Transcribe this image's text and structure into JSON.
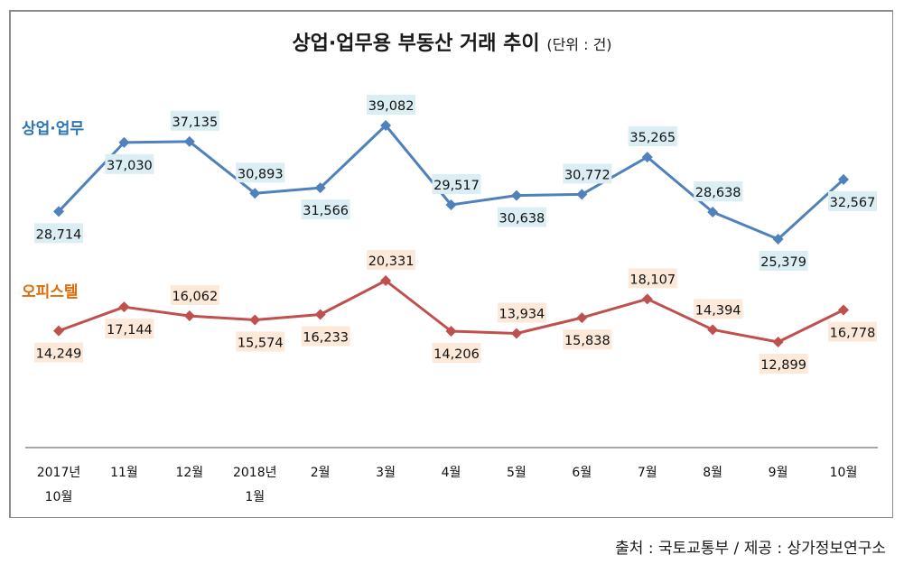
{
  "chart_data": {
    "type": "line",
    "title": "상업·업무용 부동산 거래 추이",
    "unit_label": "(단위 : 건)",
    "xlabel": "",
    "ylabel": "",
    "grid": false,
    "categories": [
      [
        "2017년",
        "10월"
      ],
      [
        "11월"
      ],
      [
        "12월"
      ],
      [
        "2018년",
        "1월"
      ],
      [
        "2월"
      ],
      [
        "3월"
      ],
      [
        "4월"
      ],
      [
        "5월"
      ],
      [
        "6월"
      ],
      [
        "7월"
      ],
      [
        "8월"
      ],
      [
        "9월"
      ],
      [
        "10월"
      ]
    ],
    "series": [
      {
        "name": "상업·업무",
        "color": "#4f81bd",
        "label_bg": "#dbeef4",
        "name_color": "#2e75b6",
        "values": [
          28714,
          37030,
          37135,
          30893,
          31566,
          39082,
          29517,
          30638,
          30772,
          35265,
          28638,
          25379,
          32567
        ],
        "labels": [
          "28,714",
          "37,030",
          "37,135",
          "30,893",
          "31,566",
          "39,082",
          "29,517",
          "30,638",
          "30,772",
          "35,265",
          "28,638",
          "25,379",
          "32,567"
        ],
        "label_pos": [
          "below",
          "below",
          "above",
          "above",
          "below",
          "above",
          "above",
          "below",
          "above",
          "above",
          "above",
          "below",
          "below"
        ]
      },
      {
        "name": "오피스텔",
        "color": "#c0504d",
        "label_bg": "#fde9d9",
        "name_color": "#e36c09",
        "values": [
          14249,
          17144,
          16062,
          15574,
          16233,
          20331,
          14206,
          13934,
          15838,
          18107,
          14394,
          12899,
          16778
        ],
        "labels": [
          "14,249",
          "17,144",
          "16,062",
          "15,574",
          "16,233",
          "20,331",
          "14,206",
          "13,934",
          "15,838",
          "18,107",
          "14,394",
          "12,899",
          "16,778"
        ],
        "label_pos": [
          "below",
          "below",
          "above",
          "below",
          "below",
          "above",
          "below",
          "above",
          "below",
          "above",
          "above",
          "below",
          "below"
        ]
      }
    ]
  },
  "source": "출처 : 국토교통부 / 제공 : 상가정보연구소"
}
